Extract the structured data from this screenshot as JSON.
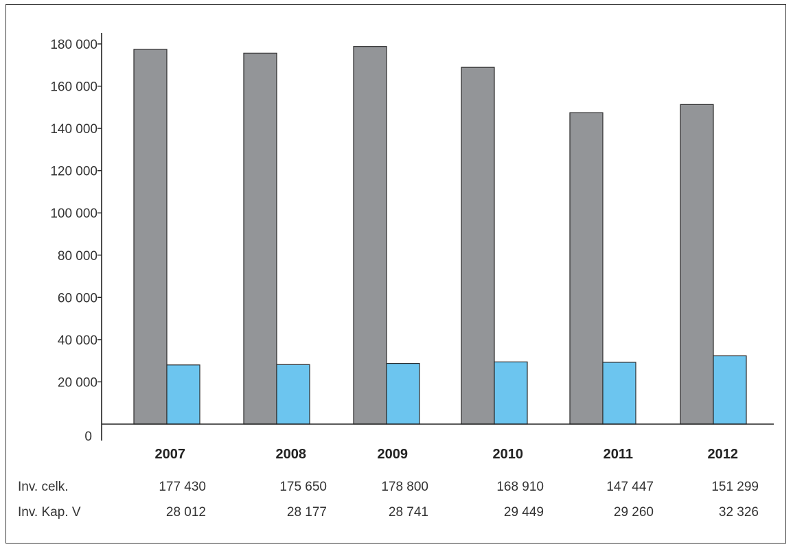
{
  "colors": {
    "series_total": "#939598",
    "series_kap": "#6cc5ef",
    "axis": "#222222",
    "frame": "#3a3a3a"
  },
  "chart_data": {
    "type": "bar",
    "title": "",
    "xlabel": "",
    "ylabel": "",
    "ylim": [
      0,
      180000
    ],
    "yticks": [
      0,
      20000,
      40000,
      60000,
      80000,
      100000,
      120000,
      140000,
      160000,
      180000
    ],
    "ytick_labels": [
      "0",
      "20 000",
      "40 000",
      "60 000",
      "80 000",
      "100 000",
      "120 000",
      "140 000",
      "160 000",
      "180 000"
    ],
    "grid": false,
    "legend": "none",
    "categories": [
      "2007",
      "2008",
      "2009",
      "2010",
      "2011",
      "2012"
    ],
    "series": [
      {
        "name": "Inv. celk.",
        "values": [
          177430,
          175650,
          178800,
          168910,
          147447,
          151299
        ],
        "value_labels": [
          "177 430",
          "175 650",
          "178 800",
          "168 910",
          "147 447",
          "151 299"
        ]
      },
      {
        "name": "Inv. Kap. V",
        "values": [
          28012,
          28177,
          28741,
          29449,
          29260,
          32326
        ],
        "value_labels": [
          "28 012",
          "28 177",
          "28 741",
          "29 449",
          "29 260",
          "32 326"
        ]
      }
    ]
  }
}
